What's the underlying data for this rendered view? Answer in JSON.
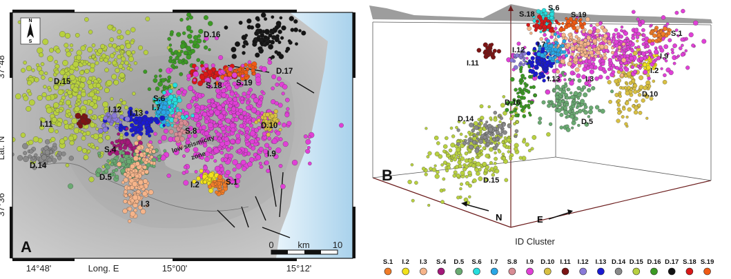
{
  "panel_a": {
    "letter": "A",
    "north": "N",
    "south": "S",
    "y_axis_label": "Lat. N",
    "x_axis_label": "Long. E",
    "lat_ticks": [
      "37°48'",
      "37°36'"
    ],
    "lon_ticks": [
      "14°48'",
      "15°00'",
      "15°12'"
    ],
    "scalebar": {
      "left": "0",
      "unit": "km",
      "right": "10"
    },
    "low_seismicity_line1": "low seismicity",
    "low_seismicity_line2": "zone"
  },
  "panel_b": {
    "letter": "B",
    "north": "N",
    "east": "E"
  },
  "legend": {
    "title": "ID Cluster"
  },
  "chart_data": {
    "type": "scatter",
    "clusters": [
      {
        "id": "S.1",
        "color": "#f07c28"
      },
      {
        "id": "I.2",
        "color": "#f2e21c"
      },
      {
        "id": "I.3",
        "color": "#f6b48a"
      },
      {
        "id": "S.4",
        "color": "#a4187a"
      },
      {
        "id": "D.5",
        "color": "#6aaa72"
      },
      {
        "id": "S.6",
        "color": "#27dede"
      },
      {
        "id": "I.7",
        "color": "#2aa7e6"
      },
      {
        "id": "S.8",
        "color": "#d78c94"
      },
      {
        "id": "I.9",
        "color": "#e040d6"
      },
      {
        "id": "D.10",
        "color": "#d8c042"
      },
      {
        "id": "I.11",
        "color": "#7c1414"
      },
      {
        "id": "I.12",
        "color": "#8a7ad8"
      },
      {
        "id": "I.13",
        "color": "#1a1ad0"
      },
      {
        "id": "D.14",
        "color": "#8a8a8a"
      },
      {
        "id": "D.15",
        "color": "#b8d040"
      },
      {
        "id": "D.16",
        "color": "#3c9a24"
      },
      {
        "id": "D.17",
        "color": "#141414"
      },
      {
        "id": "S.18",
        "color": "#d81818"
      },
      {
        "id": "S.19",
        "color": "#f05a14"
      }
    ]
  }
}
